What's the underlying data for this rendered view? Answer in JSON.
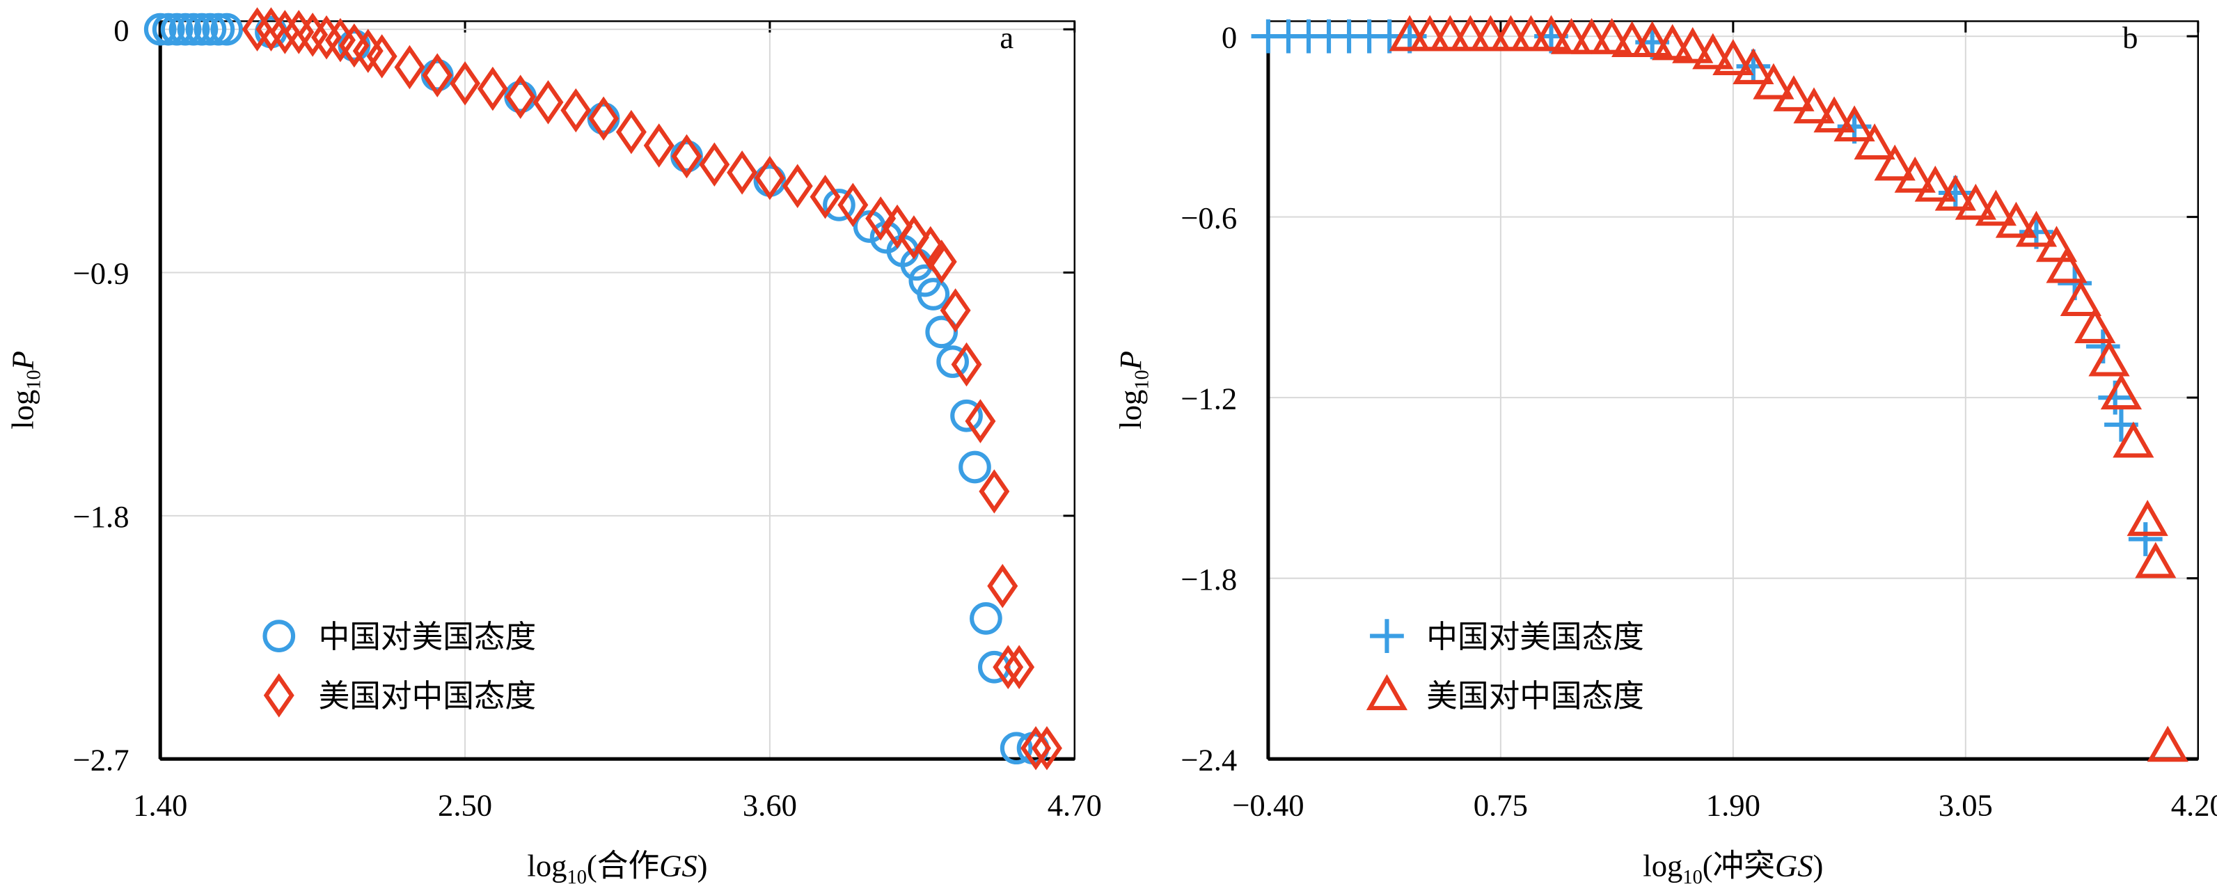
{
  "chart_data": [
    {
      "type": "scatter",
      "panel": "a",
      "xlabel": [
        "log",
        "10",
        "(合作",
        "GS",
        ")"
      ],
      "ylabel": [
        "log",
        "10",
        "P"
      ],
      "xlim": [
        1.4,
        4.7
      ],
      "ylim": [
        -2.7,
        0.03
      ],
      "xticks": [
        {
          "value": 1.4,
          "label": "1.40"
        },
        {
          "value": 2.5,
          "label": "2.50"
        },
        {
          "value": 3.6,
          "label": "3.60"
        },
        {
          "value": 4.7,
          "label": "4.70"
        }
      ],
      "yticks": [
        0,
        {
          "value": -0.9,
          "label": "−0.9"
        },
        {
          "value": -1.8,
          "label": "−1.8"
        },
        {
          "value": -2.7,
          "label": "−2.7"
        }
      ],
      "grid": true,
      "legend": "lower left",
      "series": [
        {
          "name": "中国对美国态度",
          "color": "#3a9ee4",
          "marker": "circle",
          "x": [
            1.4,
            1.43,
            1.46,
            1.49,
            1.52,
            1.55,
            1.58,
            1.61,
            1.64,
            1.8,
            2.1,
            2.4,
            2.7,
            3.0,
            3.3,
            3.6,
            3.85,
            3.96,
            4.02,
            4.08,
            4.13,
            4.16,
            4.19,
            4.22,
            4.26,
            4.31,
            4.34,
            4.38,
            4.41,
            4.49,
            4.55
          ],
          "values": [
            0,
            0,
            0,
            0,
            0,
            0,
            0,
            0,
            0,
            -0.01,
            -0.06,
            -0.17,
            -0.25,
            -0.33,
            -0.47,
            -0.56,
            -0.65,
            -0.73,
            -0.77,
            -0.82,
            -0.87,
            -0.93,
            -0.98,
            -1.12,
            -1.23,
            -1.43,
            -1.62,
            -2.18,
            -2.36,
            -2.66,
            -2.66
          ]
        },
        {
          "name": "美国对中国态度",
          "color": "#e8391f",
          "marker": "diamond",
          "x": [
            1.75,
            1.8,
            1.85,
            1.9,
            1.95,
            2.0,
            2.05,
            2.1,
            2.15,
            2.2,
            2.3,
            2.4,
            2.5,
            2.6,
            2.7,
            2.8,
            2.9,
            3.0,
            3.1,
            3.2,
            3.3,
            3.4,
            3.5,
            3.6,
            3.7,
            3.8,
            3.9,
            4.0,
            4.06,
            4.12,
            4.18,
            4.22,
            4.27,
            4.31,
            4.36,
            4.41,
            4.44,
            4.46,
            4.5,
            4.56,
            4.6
          ],
          "values": [
            0,
            0,
            -0.01,
            -0.01,
            -0.02,
            -0.03,
            -0.04,
            -0.06,
            -0.08,
            -0.1,
            -0.14,
            -0.17,
            -0.2,
            -0.22,
            -0.25,
            -0.27,
            -0.3,
            -0.33,
            -0.38,
            -0.43,
            -0.47,
            -0.5,
            -0.53,
            -0.55,
            -0.58,
            -0.62,
            -0.65,
            -0.7,
            -0.73,
            -0.77,
            -0.81,
            -0.86,
            -1.04,
            -1.24,
            -1.45,
            -1.71,
            -2.06,
            -2.36,
            -2.36,
            -2.66,
            -2.66
          ]
        }
      ]
    },
    {
      "type": "scatter",
      "panel": "b",
      "xlabel": [
        "log",
        "10",
        "(冲突",
        "GS",
        ")"
      ],
      "ylabel": [
        "log",
        "10",
        "P"
      ],
      "xlim": [
        -0.4,
        4.2
      ],
      "ylim": [
        -2.4,
        0.05
      ],
      "xticks": [
        {
          "value": -0.4,
          "label": "−0.40"
        },
        {
          "value": 0.75,
          "label": "0.75"
        },
        {
          "value": 1.9,
          "label": "1.90"
        },
        {
          "value": 3.05,
          "label": "3.05"
        },
        {
          "value": 4.2,
          "label": "4.20"
        }
      ],
      "yticks": [
        0,
        {
          "value": -0.6,
          "label": "−0.6"
        },
        {
          "value": -1.2,
          "label": "−1.2"
        },
        {
          "value": -1.8,
          "label": "−1.8"
        },
        {
          "value": -2.4,
          "label": "−2.4"
        }
      ],
      "grid": true,
      "legend": "lower left",
      "series": [
        {
          "name": "中国对美国态度",
          "color": "#3a9ee4",
          "marker": "plus",
          "x": [
            -0.4,
            -0.3,
            -0.2,
            -0.1,
            0,
            0.1,
            0.2,
            0.3,
            1.0,
            1.5,
            2.0,
            2.5,
            3.0,
            3.4,
            3.59,
            3.73,
            3.79,
            3.82,
            3.94
          ],
          "values": [
            0,
            0,
            0,
            0,
            0,
            0,
            0,
            0,
            0,
            -0.02,
            -0.1,
            -0.3,
            -0.52,
            -0.65,
            -0.82,
            -1.03,
            -1.2,
            -1.29,
            -1.67
          ]
        },
        {
          "name": "美国对中国态度",
          "color": "#e8391f",
          "marker": "triangle",
          "x": [
            0.3,
            0.4,
            0.5,
            0.6,
            0.7,
            0.8,
            0.9,
            1.0,
            1.1,
            1.2,
            1.3,
            1.4,
            1.5,
            1.6,
            1.7,
            1.8,
            1.9,
            2.0,
            2.1,
            2.2,
            2.3,
            2.4,
            2.5,
            2.6,
            2.7,
            2.8,
            2.9,
            3.0,
            3.1,
            3.2,
            3.3,
            3.4,
            3.5,
            3.55,
            3.62,
            3.69,
            3.76,
            3.82,
            3.88,
            3.95,
            3.99,
            4.05
          ],
          "values": [
            0,
            0,
            0,
            0,
            0,
            0,
            0,
            0,
            -0.01,
            -0.01,
            -0.01,
            -0.02,
            -0.02,
            -0.03,
            -0.04,
            -0.06,
            -0.08,
            -0.11,
            -0.16,
            -0.2,
            -0.24,
            -0.27,
            -0.3,
            -0.36,
            -0.43,
            -0.47,
            -0.5,
            -0.53,
            -0.56,
            -0.58,
            -0.62,
            -0.65,
            -0.7,
            -0.77,
            -0.88,
            -0.97,
            -1.08,
            -1.19,
            -1.35,
            -1.61,
            -1.75,
            -2.36
          ]
        }
      ]
    }
  ]
}
